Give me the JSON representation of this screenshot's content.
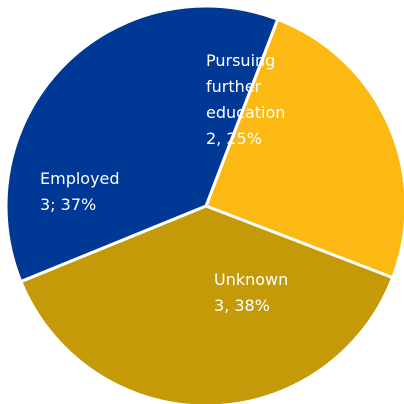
{
  "chart_data": {
    "type": "pie",
    "categories": [
      "Pursuing further education",
      "Unknown",
      "Employed"
    ],
    "values": [
      2,
      3,
      3
    ],
    "percentages": [
      25,
      38,
      37
    ],
    "colors": [
      "#FDB913",
      "#C49A08",
      "#003896"
    ],
    "data_labels": [
      [
        "Pursuing",
        "further",
        "education",
        "2, 25%"
      ],
      [
        "Unknown",
        "3, 38%"
      ],
      [
        "Employed",
        "3; 37%"
      ]
    ]
  }
}
